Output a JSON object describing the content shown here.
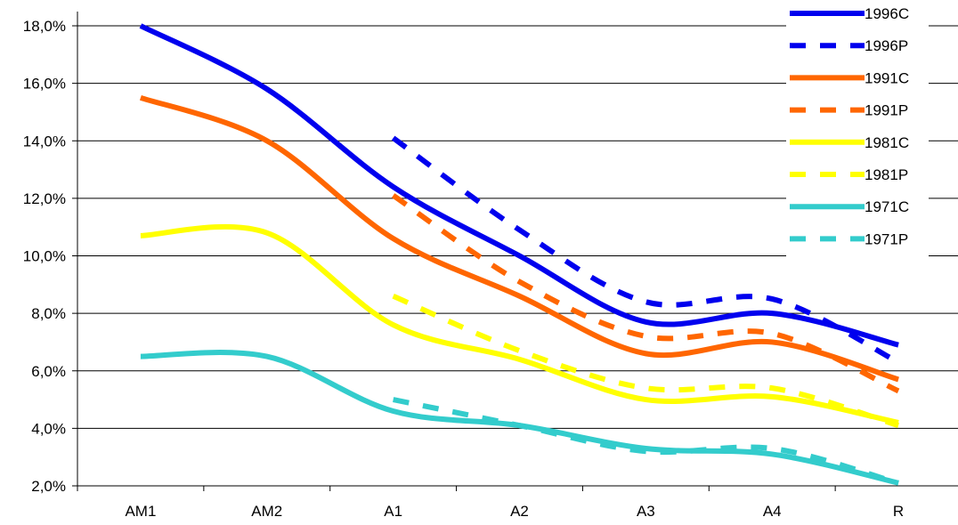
{
  "chart_data": {
    "type": "line",
    "categories": [
      "AM1",
      "AM2",
      "A1",
      "A2",
      "A3",
      "A4",
      "R"
    ],
    "ylim": [
      2.0,
      18.0
    ],
    "yticks": [
      2.0,
      4.0,
      6.0,
      8.0,
      10.0,
      12.0,
      14.0,
      16.0,
      18.0
    ],
    "ytick_labels": [
      "2,0%",
      "4,0%",
      "6,0%",
      "8,0%",
      "10,0%",
      "12,0%",
      "14,0%",
      "16,0%",
      "18,0%"
    ],
    "grid": "horizontal",
    "legend_position": "top-right",
    "series": [
      {
        "name": "1996C",
        "color": "#0000ee",
        "style": "solid",
        "values": [
          18.0,
          15.8,
          12.4,
          10.0,
          7.7,
          8.0,
          6.9
        ]
      },
      {
        "name": "1996P",
        "color": "#0000ee",
        "style": "dashed",
        "values": [
          null,
          null,
          14.1,
          10.9,
          8.4,
          8.5,
          6.3
        ]
      },
      {
        "name": "1991C",
        "color": "#ff6600",
        "style": "solid",
        "values": [
          15.5,
          14.0,
          10.6,
          8.6,
          6.6,
          7.0,
          5.7
        ]
      },
      {
        "name": "1991P",
        "color": "#ff6600",
        "style": "dashed",
        "values": [
          null,
          null,
          12.1,
          9.1,
          7.2,
          7.3,
          5.3
        ]
      },
      {
        "name": "1981C",
        "color": "#ffff00",
        "style": "solid",
        "values": [
          10.7,
          10.8,
          7.6,
          6.4,
          5.0,
          5.1,
          4.2
        ]
      },
      {
        "name": "1981P",
        "color": "#ffff00",
        "style": "dashed",
        "values": [
          null,
          null,
          8.6,
          6.7,
          5.4,
          5.4,
          4.1
        ]
      },
      {
        "name": "1971C",
        "color": "#33cccc",
        "style": "solid",
        "values": [
          6.5,
          6.5,
          4.6,
          4.1,
          3.3,
          3.1,
          2.1
        ]
      },
      {
        "name": "1971P",
        "color": "#33cccc",
        "style": "dashed",
        "values": [
          null,
          null,
          5.0,
          4.1,
          3.2,
          3.3,
          2.1
        ]
      }
    ]
  }
}
